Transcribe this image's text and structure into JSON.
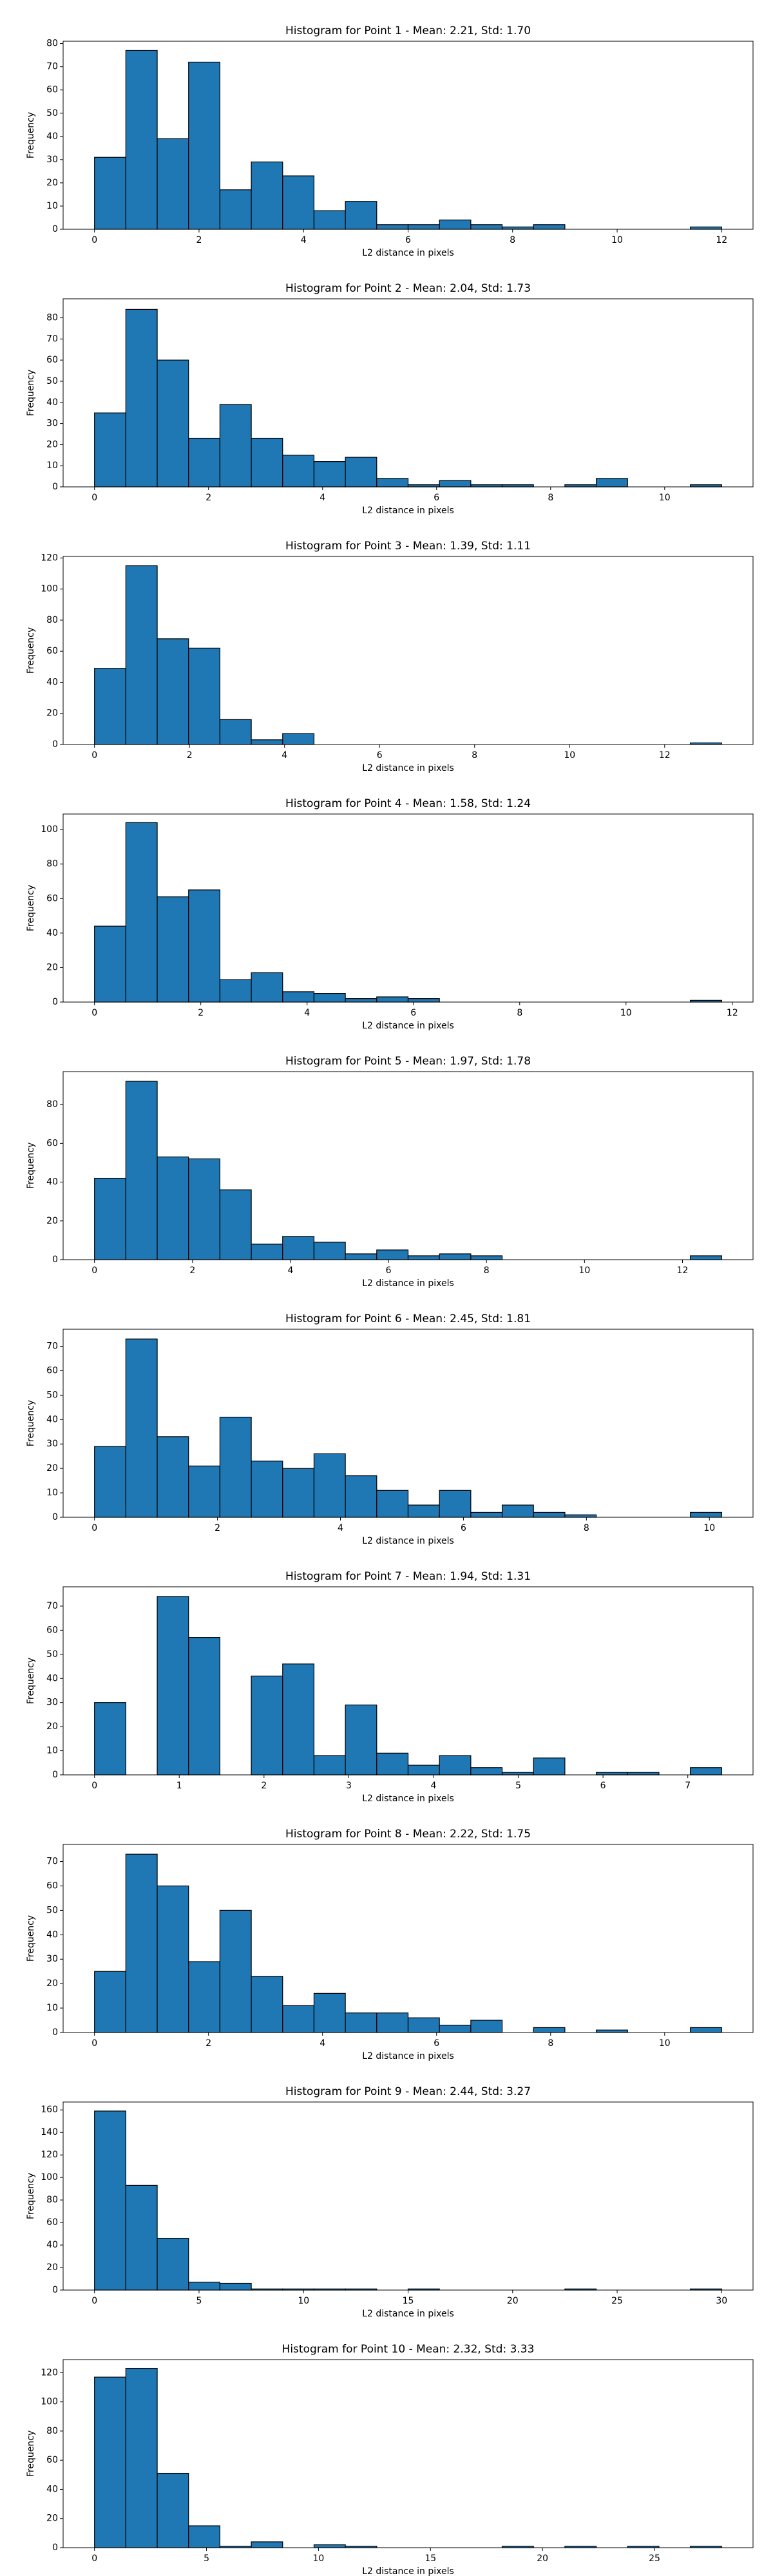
{
  "chart_data": [
    {
      "type": "histogram",
      "title": "Histogram for Point 1 - Mean: 2.21, Std: 1.70",
      "xlabel": "L2 distance in pixels",
      "ylabel": "Frequency",
      "color": "#1f77b4",
      "edgecolor": "#000000",
      "bins": [
        0,
        0.6,
        1.2,
        1.8,
        2.4,
        3.0,
        3.6,
        4.2,
        4.8,
        5.4,
        6.0,
        6.6,
        7.2,
        7.8,
        8.4,
        9.0,
        9.6,
        10.2,
        10.8,
        11.4,
        12.0
      ],
      "values": [
        31,
        77,
        39,
        72,
        17,
        29,
        23,
        8,
        12,
        2,
        2,
        4,
        2,
        1,
        2,
        0,
        0,
        0,
        0,
        1
      ],
      "xlim": [
        -0.6,
        12.6
      ],
      "xticks": [
        0,
        2,
        4,
        6,
        8,
        10,
        12
      ],
      "ylim": [
        0,
        81
      ],
      "yticks": [
        0,
        10,
        20,
        30,
        40,
        50,
        60,
        70,
        80
      ]
    },
    {
      "type": "histogram",
      "title": "Histogram for Point 2 - Mean: 2.04, Std: 1.73",
      "xlabel": "L2 distance in pixels",
      "ylabel": "Frequency",
      "color": "#1f77b4",
      "edgecolor": "#000000",
      "bins": [
        0,
        0.55,
        1.1,
        1.65,
        2.2,
        2.75,
        3.3,
        3.85,
        4.4,
        4.95,
        5.5,
        6.05,
        6.6,
        7.15,
        7.7,
        8.25,
        8.8,
        9.35,
        9.9,
        10.45,
        11.0
      ],
      "values": [
        35,
        84,
        60,
        23,
        39,
        23,
        15,
        12,
        14,
        4,
        1,
        3,
        1,
        1,
        0,
        1,
        4,
        0,
        0,
        1
      ],
      "xlim": [
        -0.55,
        11.55
      ],
      "xticks": [
        0,
        2,
        4,
        6,
        8,
        10
      ],
      "ylim": [
        0,
        89
      ],
      "yticks": [
        0,
        10,
        20,
        30,
        40,
        50,
        60,
        70,
        80
      ]
    },
    {
      "type": "histogram",
      "title": "Histogram for Point 3 - Mean: 1.39, Std: 1.11",
      "xlabel": "L2 distance in pixels",
      "ylabel": "Frequency",
      "color": "#1f77b4",
      "edgecolor": "#000000",
      "bins": [
        0,
        0.66,
        1.32,
        1.98,
        2.64,
        3.3,
        3.96,
        4.62,
        5.28,
        5.94,
        6.6,
        7.26,
        7.92,
        8.58,
        9.24,
        9.9,
        10.56,
        11.22,
        11.88,
        12.54,
        13.2
      ],
      "values": [
        49,
        115,
        68,
        62,
        16,
        3,
        7,
        0,
        0,
        0,
        0,
        0,
        0,
        0,
        0,
        0,
        0,
        0,
        0,
        1
      ],
      "xlim": [
        -0.66,
        13.86
      ],
      "xticks": [
        0,
        2,
        4,
        6,
        8,
        10,
        12
      ],
      "ylim": [
        0,
        121
      ],
      "yticks": [
        0,
        20,
        40,
        60,
        80,
        100,
        120
      ]
    },
    {
      "type": "histogram",
      "title": "Histogram for Point 4 - Mean: 1.58, Std: 1.24",
      "xlabel": "L2 distance in pixels",
      "ylabel": "Frequency",
      "color": "#1f77b4",
      "edgecolor": "#000000",
      "bins": [
        0,
        0.59,
        1.18,
        1.77,
        2.36,
        2.95,
        3.54,
        4.13,
        4.72,
        5.31,
        5.9,
        6.49,
        7.08,
        7.67,
        8.26,
        8.85,
        9.44,
        10.03,
        10.62,
        11.21,
        11.8
      ],
      "values": [
        44,
        104,
        61,
        65,
        13,
        17,
        6,
        5,
        2,
        3,
        2,
        0,
        0,
        0,
        0,
        0,
        0,
        0,
        0,
        1
      ],
      "xlim": [
        -0.59,
        12.39
      ],
      "xticks": [
        0,
        2,
        4,
        6,
        8,
        10,
        12
      ],
      "ylim": [
        0,
        109
      ],
      "yticks": [
        0,
        20,
        40,
        60,
        80,
        100
      ]
    },
    {
      "type": "histogram",
      "title": "Histogram for Point 5 - Mean: 1.97, Std: 1.78",
      "xlabel": "L2 distance in pixels",
      "ylabel": "Frequency",
      "color": "#1f77b4",
      "edgecolor": "#000000",
      "bins": [
        0,
        0.64,
        1.28,
        1.92,
        2.56,
        3.2,
        3.84,
        4.48,
        5.12,
        5.76,
        6.4,
        7.04,
        7.68,
        8.32,
        8.96,
        9.6,
        10.24,
        10.88,
        11.52,
        12.16,
        12.8
      ],
      "values": [
        42,
        92,
        53,
        52,
        36,
        8,
        12,
        9,
        3,
        5,
        2,
        3,
        2,
        0,
        0,
        0,
        0,
        0,
        0,
        2
      ],
      "xlim": [
        -0.64,
        13.44
      ],
      "xticks": [
        0,
        2,
        4,
        6,
        8,
        10,
        12
      ],
      "ylim": [
        0,
        97
      ],
      "yticks": [
        0,
        20,
        40,
        60,
        80
      ]
    },
    {
      "type": "histogram",
      "title": "Histogram for Point 6 - Mean: 2.45, Std: 1.81",
      "xlabel": "L2 distance in pixels",
      "ylabel": "Frequency",
      "color": "#1f77b4",
      "edgecolor": "#000000",
      "bins": [
        0,
        0.51,
        1.02,
        1.53,
        2.04,
        2.55,
        3.06,
        3.57,
        4.08,
        4.59,
        5.1,
        5.61,
        6.12,
        6.63,
        7.14,
        7.65,
        8.16,
        8.67,
        9.18,
        9.69,
        10.2
      ],
      "values": [
        29,
        73,
        33,
        21,
        41,
        23,
        20,
        26,
        17,
        11,
        5,
        11,
        2,
        5,
        2,
        1,
        0,
        0,
        0,
        2
      ],
      "xlim": [
        -0.51,
        10.71
      ],
      "xticks": [
        0,
        2,
        4,
        6,
        8,
        10
      ],
      "ylim": [
        0,
        77
      ],
      "yticks": [
        0,
        10,
        20,
        30,
        40,
        50,
        60,
        70
      ]
    },
    {
      "type": "histogram",
      "title": "Histogram for Point 7 - Mean: 1.94, Std: 1.31",
      "xlabel": "L2 distance in pixels",
      "ylabel": "Frequency",
      "color": "#1f77b4",
      "edgecolor": "#000000",
      "bins": [
        0,
        0.37,
        0.74,
        1.11,
        1.48,
        1.85,
        2.22,
        2.59,
        2.96,
        3.33,
        3.7,
        4.07,
        4.44,
        4.81,
        5.18,
        5.55,
        5.92,
        6.29,
        6.66,
        7.03,
        7.4
      ],
      "values": [
        30,
        0,
        74,
        57,
        0,
        41,
        46,
        8,
        29,
        9,
        4,
        8,
        3,
        1,
        7,
        0,
        1,
        1,
        0,
        3
      ],
      "xlim": [
        -0.37,
        7.77
      ],
      "xticks": [
        0,
        1,
        2,
        3,
        4,
        5,
        6,
        7
      ],
      "ylim": [
        0,
        78
      ],
      "yticks": [
        0,
        10,
        20,
        30,
        40,
        50,
        60,
        70
      ]
    },
    {
      "type": "histogram",
      "title": "Histogram for Point 8 - Mean: 2.22, Std: 1.75",
      "xlabel": "L2 distance in pixels",
      "ylabel": "Frequency",
      "color": "#1f77b4",
      "edgecolor": "#000000",
      "bins": [
        0,
        0.55,
        1.1,
        1.65,
        2.2,
        2.75,
        3.3,
        3.85,
        4.4,
        4.95,
        5.5,
        6.05,
        6.6,
        7.15,
        7.7,
        8.25,
        8.8,
        9.35,
        9.9,
        10.45,
        11.0
      ],
      "values": [
        25,
        73,
        60,
        29,
        50,
        23,
        11,
        16,
        8,
        8,
        6,
        3,
        5,
        0,
        2,
        0,
        1,
        0,
        0,
        2
      ],
      "xlim": [
        -0.55,
        11.55
      ],
      "xticks": [
        0,
        2,
        4,
        6,
        8,
        10
      ],
      "ylim": [
        0,
        77
      ],
      "yticks": [
        0,
        10,
        20,
        30,
        40,
        50,
        60,
        70
      ]
    },
    {
      "type": "histogram",
      "title": "Histogram for Point 9 - Mean: 2.44, Std: 3.27",
      "xlabel": "L2 distance in pixels",
      "ylabel": "Frequency",
      "color": "#1f77b4",
      "edgecolor": "#000000",
      "bins": [
        0,
        1.5,
        3,
        4.5,
        6,
        7.5,
        9,
        10.5,
        12,
        13.5,
        15,
        16.5,
        18,
        19.5,
        21,
        22.5,
        24,
        25.5,
        27,
        28.5,
        30
      ],
      "values": [
        159,
        93,
        46,
        7,
        6,
        1,
        1,
        1,
        1,
        0,
        1,
        0,
        0,
        0,
        0,
        1,
        0,
        0,
        0,
        1
      ],
      "xlim": [
        -1.5,
        31.5
      ],
      "xticks": [
        0,
        5,
        10,
        15,
        20,
        25,
        30
      ],
      "ylim": [
        0,
        167
      ],
      "yticks": [
        0,
        20,
        40,
        60,
        80,
        100,
        120,
        140,
        160
      ]
    },
    {
      "type": "histogram",
      "title": "Histogram for Point 10 - Mean: 2.32, Std: 3.33",
      "xlabel": "L2 distance in pixels",
      "ylabel": "Frequency",
      "color": "#1f77b4",
      "edgecolor": "#000000",
      "bins": [
        0,
        1.4,
        2.8,
        4.2,
        5.6,
        7,
        8.4,
        9.8,
        11.2,
        12.6,
        14,
        15.4,
        16.8,
        18.2,
        19.6,
        21,
        22.4,
        23.8,
        25.2,
        26.6,
        28
      ],
      "values": [
        117,
        123,
        51,
        15,
        1,
        4,
        0,
        2,
        1,
        0,
        0,
        0,
        0,
        1,
        0,
        1,
        0,
        1,
        0,
        1
      ],
      "xlim": [
        -1.4,
        29.4
      ],
      "xticks": [
        0,
        5,
        10,
        15,
        20,
        25
      ],
      "ylim": [
        0,
        129
      ],
      "yticks": [
        0,
        20,
        40,
        60,
        80,
        100,
        120
      ]
    }
  ]
}
